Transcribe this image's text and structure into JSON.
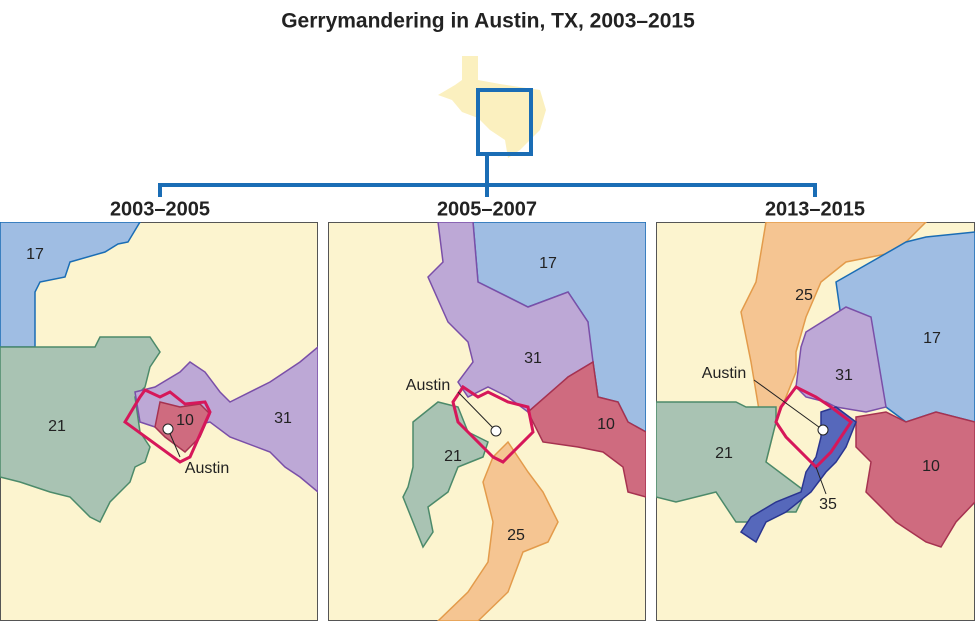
{
  "title": "Gerrymandering in Austin, TX, 2003–2015",
  "panels": [
    {
      "title": "2003–2005",
      "labels": {
        "d17": "17",
        "d21": "21",
        "d10": "10",
        "d31": "31",
        "austin": "Austin"
      }
    },
    {
      "title": "2005–2007",
      "labels": {
        "d17": "17",
        "d31": "31",
        "austin": "Austin",
        "d10": "10",
        "d21": "21",
        "d25": "25"
      }
    },
    {
      "title": "2013–2015",
      "labels": {
        "d25": "25",
        "d17": "17",
        "austin": "Austin",
        "d31": "31",
        "d21": "21",
        "d10": "10",
        "d35": "35"
      }
    }
  ]
}
